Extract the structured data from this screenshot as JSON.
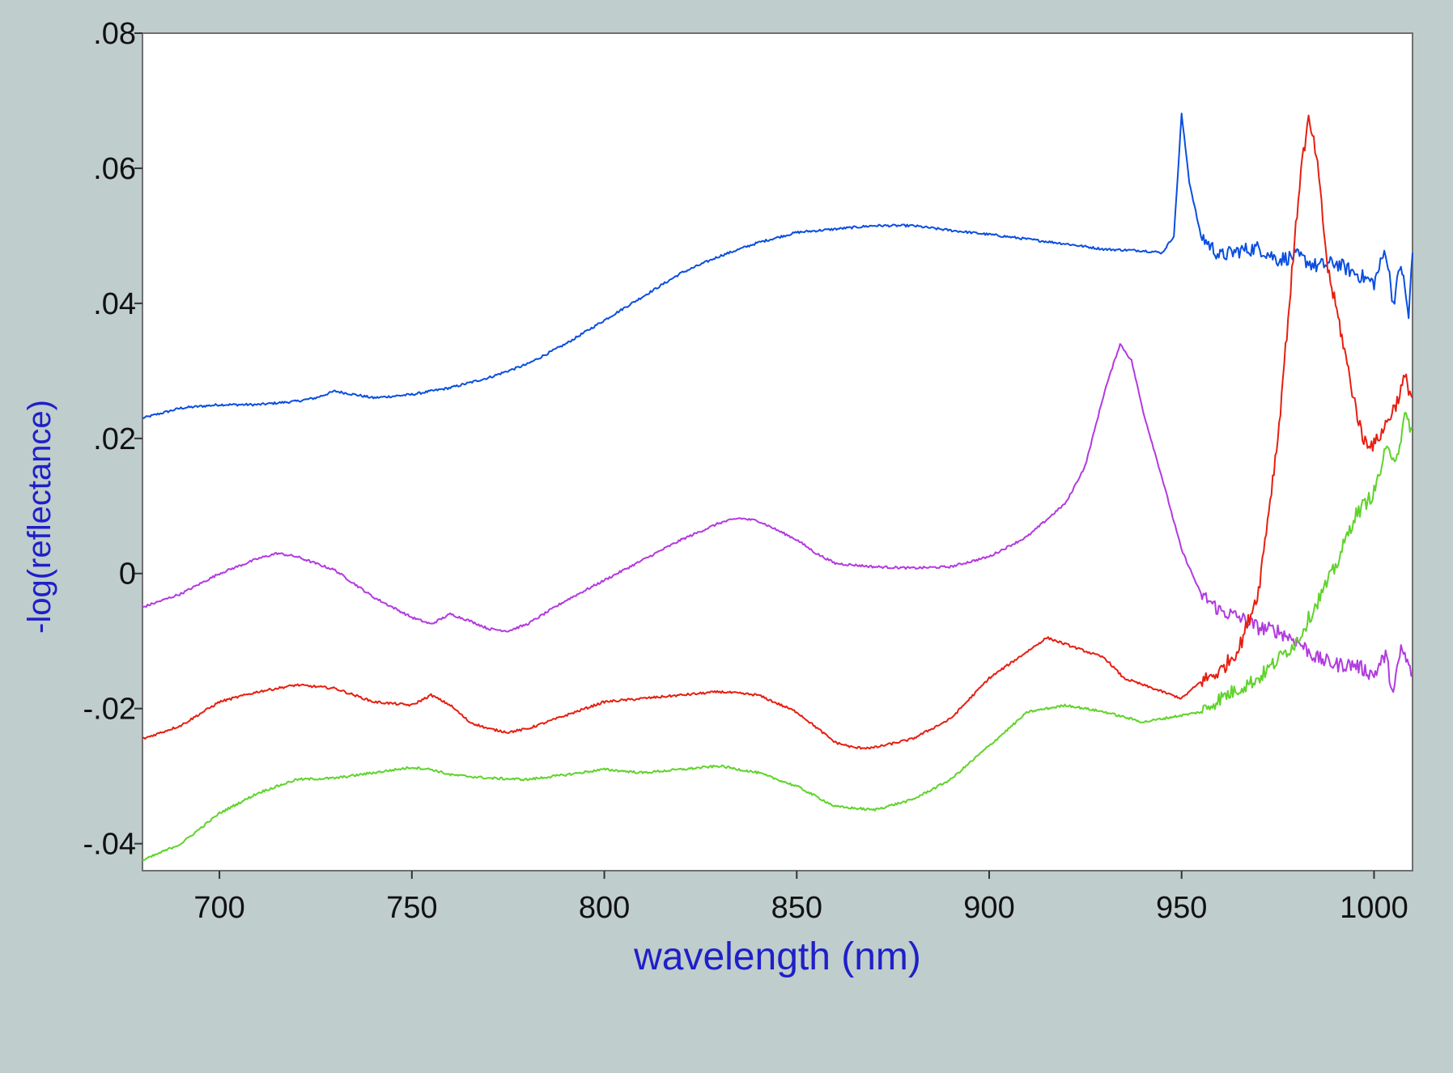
{
  "colors": {
    "background": "#bfcdcc",
    "plot_area": "#ffffff",
    "axis_label": "#1f1fc8",
    "tick_label": "#111111"
  },
  "chart_data": {
    "type": "line",
    "title": "",
    "xlabel": "wavelength (nm)",
    "ylabel": "-log(reflectance)",
    "xlim": [
      680,
      1010
    ],
    "ylim": [
      -0.044,
      0.08
    ],
    "x_ticks": [
      700,
      750,
      800,
      850,
      900,
      950,
      1000
    ],
    "x_tick_labels": [
      "700",
      "750",
      "800",
      "850",
      "900",
      "950",
      "1000"
    ],
    "y_ticks": [
      -0.04,
      -0.02,
      0,
      0.02,
      0.04,
      0.06,
      0.08
    ],
    "y_tick_labels": [
      "-.04",
      "-.02",
      "0",
      ".02",
      ".04",
      ".06",
      ".08"
    ],
    "grid": false,
    "legend": "none",
    "series": [
      {
        "color": "#0a4ee0",
        "points": [
          [
            680,
            0.023
          ],
          [
            690,
            0.0245
          ],
          [
            700,
            0.025
          ],
          [
            710,
            0.025
          ],
          [
            720,
            0.0255
          ],
          [
            725,
            0.026
          ],
          [
            730,
            0.027
          ],
          [
            740,
            0.026
          ],
          [
            750,
            0.0265
          ],
          [
            760,
            0.0275
          ],
          [
            770,
            0.029
          ],
          [
            780,
            0.031
          ],
          [
            790,
            0.034
          ],
          [
            800,
            0.0375
          ],
          [
            810,
            0.041
          ],
          [
            820,
            0.0445
          ],
          [
            830,
            0.047
          ],
          [
            840,
            0.049
          ],
          [
            850,
            0.0505
          ],
          [
            860,
            0.051
          ],
          [
            870,
            0.0515
          ],
          [
            880,
            0.0515
          ],
          [
            890,
            0.0508
          ],
          [
            900,
            0.0502
          ],
          [
            910,
            0.0495
          ],
          [
            920,
            0.0488
          ],
          [
            930,
            0.048
          ],
          [
            940,
            0.0478
          ],
          [
            945,
            0.0475
          ],
          [
            948,
            0.05
          ],
          [
            950,
            0.068
          ],
          [
            952,
            0.058
          ],
          [
            955,
            0.05
          ],
          [
            960,
            0.047
          ],
          [
            965,
            0.0478
          ],
          [
            970,
            0.0482
          ],
          [
            975,
            0.0465
          ],
          [
            980,
            0.047
          ],
          [
            985,
            0.0455
          ],
          [
            990,
            0.046
          ],
          [
            995,
            0.0445
          ],
          [
            1000,
            0.043
          ],
          [
            1003,
            0.048
          ],
          [
            1005,
            0.04
          ],
          [
            1007,
            0.046
          ],
          [
            1009,
            0.038
          ],
          [
            1010,
            0.0475
          ]
        ]
      },
      {
        "color": "#b23adf",
        "points": [
          [
            680,
            -0.005
          ],
          [
            690,
            -0.003
          ],
          [
            700,
            0.0
          ],
          [
            710,
            0.0022
          ],
          [
            715,
            0.003
          ],
          [
            720,
            0.0025
          ],
          [
            730,
            0.0005
          ],
          [
            740,
            -0.0035
          ],
          [
            750,
            -0.0065
          ],
          [
            755,
            -0.0075
          ],
          [
            760,
            -0.006
          ],
          [
            765,
            -0.007
          ],
          [
            770,
            -0.0082
          ],
          [
            775,
            -0.0085
          ],
          [
            780,
            -0.0075
          ],
          [
            790,
            -0.004
          ],
          [
            800,
            -0.001
          ],
          [
            810,
            0.002
          ],
          [
            820,
            0.005
          ],
          [
            830,
            0.0075
          ],
          [
            835,
            0.0082
          ],
          [
            840,
            0.0078
          ],
          [
            850,
            0.005
          ],
          [
            855,
            0.003
          ],
          [
            860,
            0.0015
          ],
          [
            870,
            0.001
          ],
          [
            880,
            0.0008
          ],
          [
            890,
            0.001
          ],
          [
            900,
            0.0025
          ],
          [
            910,
            0.0055
          ],
          [
            920,
            0.0105
          ],
          [
            925,
            0.016
          ],
          [
            930,
            0.027
          ],
          [
            934,
            0.034
          ],
          [
            937,
            0.0315
          ],
          [
            940,
            0.024
          ],
          [
            945,
            0.014
          ],
          [
            950,
            0.0035
          ],
          [
            955,
            -0.003
          ],
          [
            960,
            -0.0055
          ],
          [
            965,
            -0.0065
          ],
          [
            970,
            -0.008
          ],
          [
            975,
            -0.0085
          ],
          [
            980,
            -0.01
          ],
          [
            985,
            -0.0125
          ],
          [
            990,
            -0.0135
          ],
          [
            995,
            -0.0135
          ],
          [
            1000,
            -0.015
          ],
          [
            1003,
            -0.012
          ],
          [
            1005,
            -0.018
          ],
          [
            1007,
            -0.011
          ],
          [
            1010,
            -0.015
          ]
        ]
      },
      {
        "color": "#e61e10",
        "points": [
          [
            680,
            -0.0245
          ],
          [
            690,
            -0.0225
          ],
          [
            700,
            -0.019
          ],
          [
            710,
            -0.0175
          ],
          [
            720,
            -0.0165
          ],
          [
            730,
            -0.017
          ],
          [
            740,
            -0.019
          ],
          [
            750,
            -0.0195
          ],
          [
            755,
            -0.018
          ],
          [
            760,
            -0.0195
          ],
          [
            765,
            -0.022
          ],
          [
            770,
            -0.023
          ],
          [
            775,
            -0.0235
          ],
          [
            780,
            -0.023
          ],
          [
            790,
            -0.021
          ],
          [
            800,
            -0.019
          ],
          [
            810,
            -0.0185
          ],
          [
            820,
            -0.018
          ],
          [
            830,
            -0.0175
          ],
          [
            840,
            -0.018
          ],
          [
            850,
            -0.0205
          ],
          [
            860,
            -0.025
          ],
          [
            865,
            -0.0258
          ],
          [
            870,
            -0.0258
          ],
          [
            880,
            -0.0245
          ],
          [
            890,
            -0.0215
          ],
          [
            900,
            -0.0155
          ],
          [
            910,
            -0.0115
          ],
          [
            915,
            -0.0095
          ],
          [
            920,
            -0.0105
          ],
          [
            930,
            -0.0125
          ],
          [
            935,
            -0.0155
          ],
          [
            940,
            -0.0165
          ],
          [
            945,
            -0.0175
          ],
          [
            950,
            -0.0185
          ],
          [
            955,
            -0.016
          ],
          [
            960,
            -0.0145
          ],
          [
            965,
            -0.011
          ],
          [
            970,
            -0.0025
          ],
          [
            975,
            0.02
          ],
          [
            978,
            0.04
          ],
          [
            981,
            0.06
          ],
          [
            983,
            0.067
          ],
          [
            985,
            0.062
          ],
          [
            988,
            0.045
          ],
          [
            991,
            0.037
          ],
          [
            994,
            0.028
          ],
          [
            997,
            0.02
          ],
          [
            1000,
            0.019
          ],
          [
            1003,
            0.022
          ],
          [
            1006,
            0.0255
          ],
          [
            1008,
            0.029
          ],
          [
            1010,
            0.026
          ]
        ]
      },
      {
        "color": "#5fd32a",
        "points": [
          [
            680,
            -0.0425
          ],
          [
            690,
            -0.04
          ],
          [
            700,
            -0.0355
          ],
          [
            710,
            -0.0325
          ],
          [
            720,
            -0.0305
          ],
          [
            730,
            -0.0303
          ],
          [
            740,
            -0.0295
          ],
          [
            750,
            -0.0287
          ],
          [
            755,
            -0.029
          ],
          [
            760,
            -0.0298
          ],
          [
            770,
            -0.0303
          ],
          [
            780,
            -0.0305
          ],
          [
            790,
            -0.0298
          ],
          [
            800,
            -0.029
          ],
          [
            810,
            -0.0295
          ],
          [
            820,
            -0.029
          ],
          [
            830,
            -0.0285
          ],
          [
            840,
            -0.0295
          ],
          [
            850,
            -0.0315
          ],
          [
            860,
            -0.0345
          ],
          [
            870,
            -0.035
          ],
          [
            880,
            -0.0335
          ],
          [
            890,
            -0.0305
          ],
          [
            900,
            -0.0255
          ],
          [
            910,
            -0.0205
          ],
          [
            920,
            -0.0195
          ],
          [
            930,
            -0.0205
          ],
          [
            940,
            -0.022
          ],
          [
            950,
            -0.021
          ],
          [
            955,
            -0.0205
          ],
          [
            960,
            -0.0185
          ],
          [
            970,
            -0.0155
          ],
          [
            980,
            -0.01
          ],
          [
            990,
            0.001
          ],
          [
            995,
            0.0085
          ],
          [
            1000,
            0.012
          ],
          [
            1003,
            0.018
          ],
          [
            1006,
            0.0175
          ],
          [
            1008,
            0.023
          ],
          [
            1010,
            0.0215
          ]
        ]
      }
    ]
  }
}
